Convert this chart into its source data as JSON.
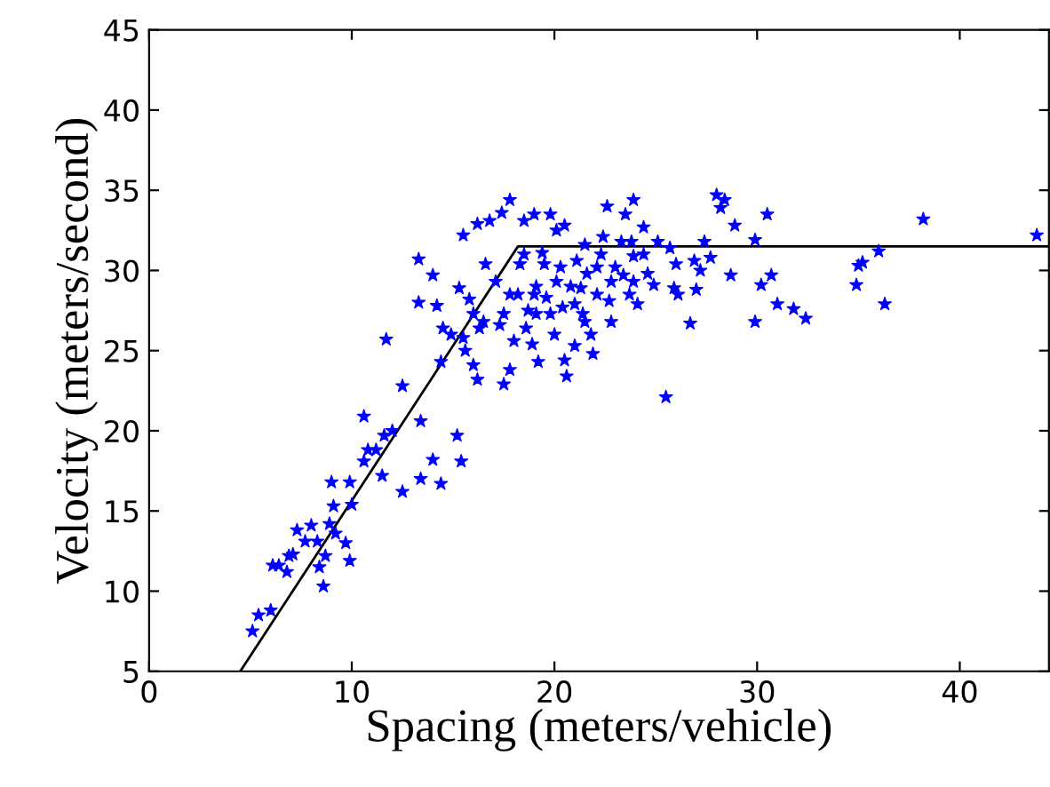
{
  "chart_data": {
    "type": "scatter",
    "xlabel": "Spacing (meters/vehicle)",
    "ylabel": "Velocity (meters/second)",
    "xlim": [
      0,
      44.4
    ],
    "ylim": [
      5,
      45
    ],
    "xticks": [
      0,
      10,
      20,
      30,
      40
    ],
    "yticks": [
      5,
      10,
      15,
      20,
      25,
      30,
      35,
      40,
      45
    ],
    "grid": false,
    "legend": false,
    "series": [
      {
        "color": "#0000ff",
        "marker": "star",
        "x": [
          5.1,
          5.4,
          6.0,
          6.1,
          6.4,
          6.8,
          6.9,
          7.1,
          7.3,
          7.7,
          8.0,
          8.3,
          8.4,
          8.6,
          8.7,
          8.9,
          9.0,
          9.1,
          9.2,
          9.7,
          9.9,
          9.9,
          10.0,
          10.6,
          10.6,
          10.8,
          11.2,
          11.5,
          11.6,
          12.0,
          11.7,
          12.5,
          12.5,
          13.3,
          13.3,
          13.4,
          13.4,
          14.0,
          14.0,
          14.2,
          14.4,
          14.4,
          14.5,
          14.9,
          15.2,
          15.4,
          15.3,
          15.5,
          15.6,
          15.8,
          16.0,
          16.2,
          16.2,
          16.3,
          16.5,
          16.6,
          16.8,
          17.1,
          17.4,
          17.5,
          17.5,
          17.8,
          17.8,
          18.0,
          18.2,
          18.3,
          18.5,
          18.6,
          18.7,
          18.9,
          19.0,
          19.1,
          19.2,
          19.4,
          19.6,
          19.8,
          20.0,
          20.1,
          20.3,
          20.4,
          20.5,
          20.6,
          20.5,
          20.8,
          21.0,
          21.1,
          21.4,
          21.5,
          21.6,
          21.8,
          21.9,
          22.1,
          22.3,
          22.4,
          22.6,
          22.7,
          22.8,
          23.0,
          23.3,
          23.4,
          23.5,
          23.7,
          23.9,
          23.9,
          24.1,
          24.4,
          24.6,
          24.9,
          25.1,
          25.5,
          25.7,
          25.9,
          26.0,
          26.1,
          26.7,
          26.9,
          27.0,
          27.2,
          27.4,
          27.7,
          28.0,
          28.2,
          28.4,
          28.7,
          28.9,
          29.9,
          29.9,
          30.2,
          30.5,
          30.7,
          31.0,
          31.8,
          32.4,
          34.9,
          35.0,
          35.2,
          36.0,
          36.3,
          38.2,
          43.8,
          18.5,
          19.0,
          19.5,
          19.8,
          21.0,
          21.3,
          20.1,
          19.1,
          22.1,
          22.8,
          23.8,
          24.4,
          23.9,
          21.5,
          17.8,
          17.3,
          16.0,
          15.5
        ],
        "values": [
          7.5,
          8.5,
          8.8,
          11.6,
          11.6,
          11.2,
          12.2,
          12.3,
          13.8,
          13.1,
          14.1,
          13.1,
          11.5,
          10.3,
          12.2,
          14.2,
          16.8,
          15.3,
          13.6,
          13.0,
          11.9,
          16.8,
          15.4,
          20.9,
          18.1,
          18.8,
          18.8,
          17.2,
          19.7,
          20.0,
          25.7,
          22.8,
          16.2,
          30.7,
          28.0,
          20.6,
          17.0,
          29.7,
          18.2,
          27.8,
          24.3,
          16.7,
          26.4,
          26.0,
          19.7,
          18.1,
          28.9,
          32.2,
          25.0,
          28.2,
          24.1,
          23.2,
          32.9,
          26.4,
          26.8,
          30.4,
          33.1,
          29.3,
          33.6,
          27.3,
          22.9,
          34.4,
          23.8,
          25.6,
          28.5,
          30.4,
          33.1,
          26.4,
          27.5,
          25.4,
          33.5,
          29.0,
          24.3,
          31.1,
          28.3,
          33.5,
          26.0,
          32.5,
          30.2,
          27.7,
          24.4,
          23.4,
          32.8,
          29.0,
          25.3,
          30.6,
          27.3,
          31.6,
          29.8,
          26.0,
          24.8,
          28.5,
          31.0,
          32.1,
          34.0,
          28.1,
          26.8,
          30.2,
          31.8,
          29.7,
          33.5,
          28.5,
          34.4,
          30.9,
          27.9,
          32.7,
          29.8,
          29.1,
          31.8,
          22.1,
          31.4,
          28.9,
          30.4,
          28.5,
          26.7,
          30.6,
          28.8,
          30.0,
          31.8,
          30.8,
          34.7,
          33.9,
          34.4,
          29.7,
          32.8,
          31.9,
          26.8,
          29.1,
          33.5,
          29.7,
          27.9,
          27.6,
          27.0,
          29.1,
          30.3,
          30.5,
          31.2,
          27.9,
          33.2,
          32.2,
          31.0,
          28.5,
          30.4,
          27.3,
          27.9,
          28.9,
          29.3,
          27.3,
          30.2,
          29.3,
          31.8,
          31.0,
          29.3,
          26.8,
          28.5,
          26.6,
          27.3,
          25.8
        ]
      },
      {
        "type": "line",
        "color": "#000000",
        "marker": "none",
        "line_style": "solid",
        "x": [
          4.5,
          18.2,
          44.4
        ],
        "values": [
          5,
          31.5,
          31.5
        ]
      }
    ]
  }
}
